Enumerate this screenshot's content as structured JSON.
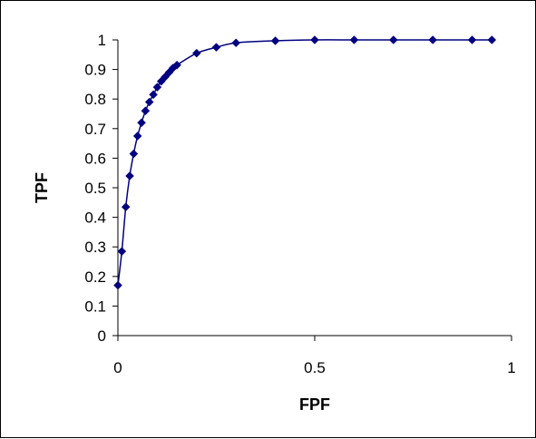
{
  "chart_data": {
    "type": "scatter",
    "title": "",
    "xlabel": "FPF",
    "ylabel": "TPF",
    "xlim": [
      0,
      1
    ],
    "ylim": [
      0,
      1
    ],
    "x_ticks": [
      0,
      0.5,
      1
    ],
    "x_tick_labels": [
      "0",
      "0.5",
      "1"
    ],
    "y_ticks": [
      0,
      0.1,
      0.2,
      0.3,
      0.4,
      0.5,
      0.6,
      0.7,
      0.8,
      0.9,
      1
    ],
    "y_tick_labels": [
      "0",
      "0.1",
      "0.2",
      "0.3",
      "0.4",
      "0.5",
      "0.6",
      "0.7",
      "0.8",
      "0.9",
      "1"
    ],
    "grid": false,
    "legend": "none",
    "series": [
      {
        "color": "#000080",
        "marker": "diamond",
        "line": "smooth",
        "x": [
          0.0,
          0.01,
          0.02,
          0.03,
          0.04,
          0.05,
          0.06,
          0.07,
          0.08,
          0.09,
          0.1,
          0.11,
          0.12,
          0.13,
          0.14,
          0.15,
          0.2,
          0.25,
          0.3,
          0.4,
          0.5,
          0.6,
          0.7,
          0.8,
          0.9,
          0.95
        ],
        "y": [
          0.17,
          0.285,
          0.435,
          0.54,
          0.615,
          0.675,
          0.72,
          0.76,
          0.79,
          0.815,
          0.84,
          0.86,
          0.875,
          0.89,
          0.905,
          0.915,
          0.955,
          0.975,
          0.99,
          0.997,
          1.0,
          1.0,
          1.0,
          1.0,
          1.0,
          1.0
        ]
      }
    ]
  }
}
